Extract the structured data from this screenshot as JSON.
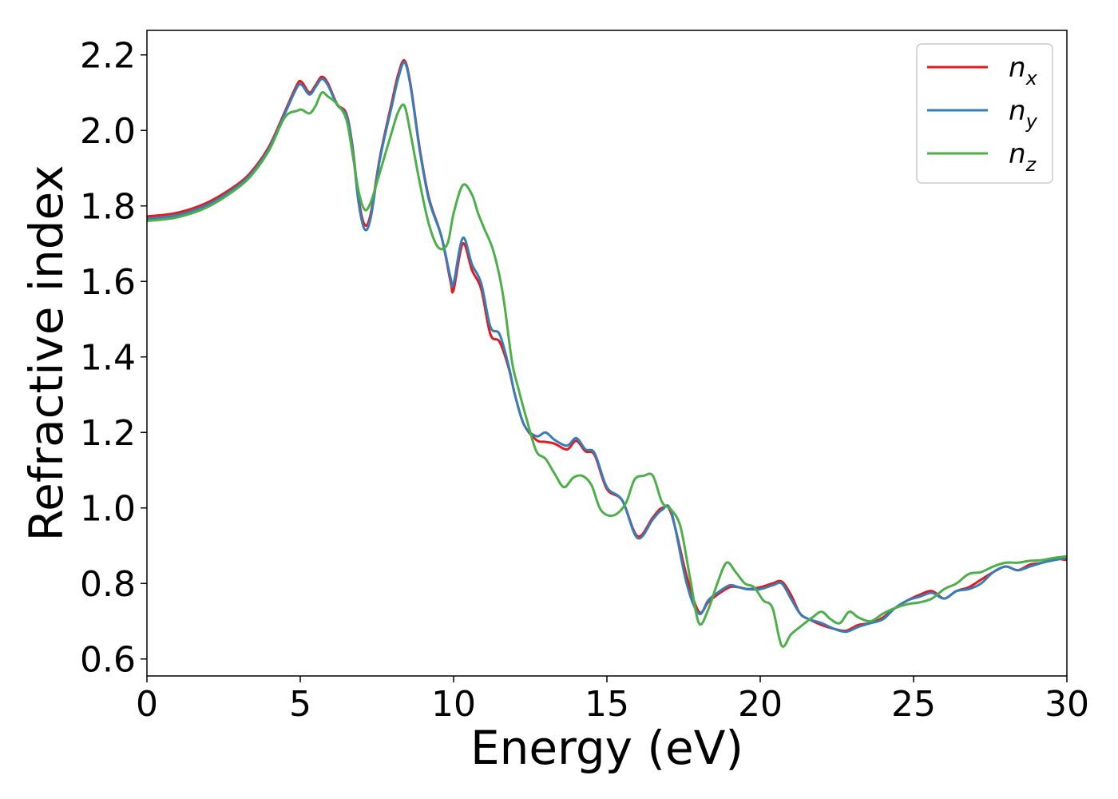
{
  "chart_data": {
    "type": "line",
    "xlabel": "Energy (eV)",
    "ylabel": "Refractive index",
    "xlim": [
      0,
      30
    ],
    "ylim": [
      0.555,
      2.265
    ],
    "x_ticks": [
      0,
      5,
      10,
      15,
      20,
      25,
      30
    ],
    "y_ticks": [
      0.6,
      0.8,
      1.0,
      1.2,
      1.4,
      1.6,
      1.8,
      2.0,
      2.2
    ],
    "x_tick_labels": [
      "0",
      "5",
      "10",
      "15",
      "20",
      "25",
      "30"
    ],
    "y_tick_labels": [
      "0.6",
      "0.8",
      "1.0",
      "1.2",
      "1.4",
      "1.6",
      "1.8",
      "2.0",
      "2.2"
    ],
    "grid": false,
    "legend_position": "top-right",
    "series": [
      {
        "name": "n_x",
        "label_main": "n",
        "label_sub": "x",
        "color": "#e41a1c",
        "x": [
          0,
          1,
          2,
          3,
          3.5,
          4,
          4.5,
          4.9,
          5.05,
          5.3,
          5.5,
          5.7,
          5.9,
          6.2,
          6.5,
          6.7,
          6.9,
          7.1,
          7.3,
          7.6,
          8.0,
          8.2,
          8.4,
          8.6,
          8.9,
          9.2,
          9.6,
          9.9,
          10.0,
          10.3,
          10.6,
          10.9,
          11.2,
          11.5,
          11.8,
          12.0,
          12.3,
          12.7,
          13.0,
          13.3,
          13.7,
          14.0,
          14.3,
          14.6,
          15.0,
          15.5,
          16.0,
          16.5,
          16.8,
          17.1,
          17.6,
          18.0,
          18.3,
          18.6,
          19.0,
          19.3,
          19.6,
          20.0,
          20.4,
          20.7,
          21.0,
          21.3,
          21.6,
          22.0,
          22.4,
          22.8,
          23.2,
          23.6,
          24.0,
          24.4,
          24.8,
          25.2,
          25.6,
          26.0,
          26.4,
          26.8,
          27.2,
          27.6,
          28.0,
          28.4,
          28.8,
          29.2,
          29.6,
          30
        ],
        "y": [
          1.772,
          1.782,
          1.81,
          1.86,
          1.9,
          1.96,
          2.05,
          2.122,
          2.128,
          2.1,
          2.12,
          2.142,
          2.125,
          2.07,
          2.045,
          1.96,
          1.82,
          1.75,
          1.78,
          1.93,
          2.08,
          2.15,
          2.185,
          2.12,
          1.95,
          1.82,
          1.72,
          1.6,
          1.578,
          1.7,
          1.63,
          1.58,
          1.46,
          1.44,
          1.37,
          1.3,
          1.22,
          1.18,
          1.175,
          1.17,
          1.155,
          1.178,
          1.15,
          1.14,
          1.05,
          1.02,
          0.925,
          0.975,
          1.0,
          0.985,
          0.82,
          0.725,
          0.75,
          0.77,
          0.79,
          0.79,
          0.785,
          0.79,
          0.8,
          0.805,
          0.77,
          0.72,
          0.705,
          0.69,
          0.68,
          0.675,
          0.69,
          0.695,
          0.71,
          0.735,
          0.755,
          0.77,
          0.78,
          0.76,
          0.78,
          0.79,
          0.81,
          0.83,
          0.845,
          0.835,
          0.85,
          0.855,
          0.865,
          0.862
        ]
      },
      {
        "name": "n_y",
        "label_main": "n",
        "label_sub": "y",
        "color": "#377eb8",
        "x": [
          0,
          1,
          2,
          3,
          3.5,
          4,
          4.5,
          4.9,
          5.05,
          5.3,
          5.5,
          5.7,
          5.9,
          6.2,
          6.5,
          6.7,
          6.9,
          7.1,
          7.3,
          7.6,
          8.0,
          8.2,
          8.4,
          8.6,
          8.9,
          9.2,
          9.6,
          9.9,
          10.0,
          10.3,
          10.6,
          10.9,
          11.2,
          11.5,
          11.8,
          12.0,
          12.3,
          12.7,
          13.0,
          13.3,
          13.7,
          14.0,
          14.3,
          14.6,
          15.0,
          15.5,
          16.0,
          16.5,
          16.8,
          17.1,
          17.6,
          18.0,
          18.3,
          18.6,
          19.0,
          19.3,
          19.6,
          20.0,
          20.4,
          20.7,
          21.0,
          21.3,
          21.6,
          22.0,
          22.4,
          22.8,
          23.2,
          23.6,
          24.0,
          24.4,
          24.8,
          25.2,
          25.6,
          26.0,
          26.4,
          26.8,
          27.2,
          27.6,
          28.0,
          28.4,
          28.8,
          29.2,
          29.6,
          30
        ],
        "y": [
          1.766,
          1.776,
          1.804,
          1.855,
          1.895,
          1.955,
          2.045,
          2.115,
          2.12,
          2.095,
          2.115,
          2.136,
          2.12,
          2.068,
          2.04,
          1.955,
          1.81,
          1.738,
          1.77,
          1.925,
          2.07,
          2.14,
          2.18,
          2.115,
          1.945,
          1.815,
          1.72,
          1.61,
          1.595,
          1.715,
          1.645,
          1.595,
          1.48,
          1.46,
          1.375,
          1.3,
          1.22,
          1.19,
          1.2,
          1.18,
          1.165,
          1.185,
          1.155,
          1.145,
          1.055,
          1.02,
          0.92,
          0.97,
          0.995,
          0.99,
          0.8,
          0.72,
          0.755,
          0.775,
          0.795,
          0.79,
          0.785,
          0.785,
          0.795,
          0.8,
          0.76,
          0.72,
          0.705,
          0.695,
          0.68,
          0.672,
          0.685,
          0.695,
          0.705,
          0.735,
          0.755,
          0.765,
          0.775,
          0.76,
          0.78,
          0.785,
          0.8,
          0.83,
          0.845,
          0.835,
          0.845,
          0.855,
          0.862,
          0.868
        ]
      },
      {
        "name": "n_z",
        "label_main": "n",
        "label_sub": "z",
        "color": "#4daf4a",
        "x": [
          0,
          1,
          2,
          3,
          3.5,
          4,
          4.5,
          4.9,
          5.05,
          5.3,
          5.5,
          5.7,
          5.9,
          6.2,
          6.5,
          6.7,
          6.9,
          7.1,
          7.3,
          7.6,
          8.0,
          8.2,
          8.4,
          8.6,
          8.9,
          9.2,
          9.5,
          9.8,
          10.0,
          10.3,
          10.6,
          10.8,
          11.0,
          11.3,
          11.6,
          11.9,
          12.1,
          12.4,
          12.7,
          13.0,
          13.3,
          13.6,
          13.9,
          14.2,
          14.5,
          14.8,
          15.2,
          15.6,
          15.9,
          16.2,
          16.5,
          16.8,
          17.1,
          17.4,
          17.7,
          18.0,
          18.3,
          18.6,
          18.9,
          19.2,
          19.5,
          19.8,
          20.1,
          20.4,
          20.7,
          21.0,
          21.3,
          21.7,
          22.0,
          22.3,
          22.6,
          22.9,
          23.2,
          23.6,
          24.0,
          24.4,
          24.8,
          25.2,
          25.6,
          26.0,
          26.4,
          26.8,
          27.2,
          27.6,
          28.0,
          28.4,
          28.8,
          29.2,
          29.6,
          30
        ],
        "y": [
          1.76,
          1.77,
          1.798,
          1.85,
          1.89,
          1.95,
          2.035,
          2.052,
          2.055,
          2.045,
          2.065,
          2.1,
          2.09,
          2.07,
          2.03,
          1.94,
          1.84,
          1.79,
          1.81,
          1.89,
          2.0,
          2.05,
          2.065,
          1.99,
          1.86,
          1.75,
          1.69,
          1.7,
          1.78,
          1.855,
          1.83,
          1.78,
          1.74,
          1.68,
          1.57,
          1.39,
          1.32,
          1.23,
          1.15,
          1.13,
          1.09,
          1.055,
          1.08,
          1.085,
          1.06,
          0.995,
          0.98,
          1.01,
          1.075,
          1.085,
          1.085,
          1.015,
          0.995,
          0.95,
          0.82,
          0.695,
          0.73,
          0.8,
          0.855,
          0.83,
          0.8,
          0.79,
          0.755,
          0.735,
          0.635,
          0.665,
          0.685,
          0.71,
          0.725,
          0.705,
          0.695,
          0.725,
          0.71,
          0.7,
          0.72,
          0.735,
          0.745,
          0.75,
          0.76,
          0.785,
          0.8,
          0.825,
          0.83,
          0.845,
          0.855,
          0.855,
          0.86,
          0.862,
          0.868,
          0.872
        ]
      }
    ]
  }
}
